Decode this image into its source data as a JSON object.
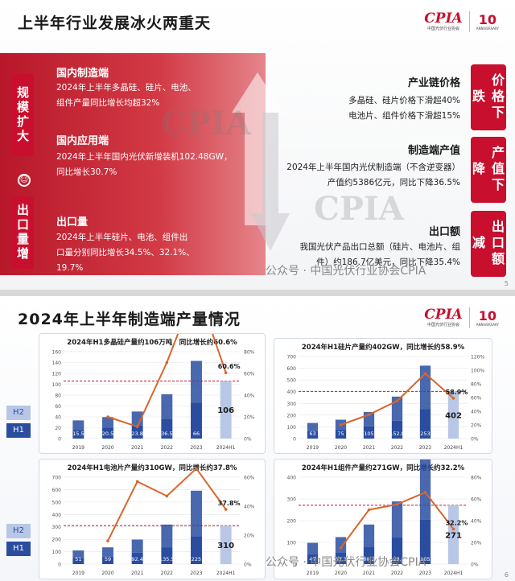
{
  "slide1": {
    "title": "上半年行业发展冰火两重天",
    "logo": {
      "name": "CPIA",
      "sub": "中国光伏行业协会",
      "anniv": "10",
      "anniv_sub": "ANNIVERSARY"
    },
    "left_labels": [
      "规模扩大",
      "出口量增"
    ],
    "left": [
      {
        "heading": "国内制造端",
        "text": [
          "2024年上半年多晶硅、硅片、电池、",
          "组件产量同比增长均超32%"
        ]
      },
      {
        "heading": "国内应用端",
        "text": [
          "2024年上半年国内光伏新增装机102.48GW，",
          "同比增长30.7%"
        ]
      },
      {
        "heading": "出口量",
        "text": [
          "2024年上半年硅片、电池、组件出",
          "口量分别同比增长34.5%、32.1%、",
          "19.7%"
        ]
      }
    ],
    "right_labels": [
      "价格下跌",
      "产值下降",
      "出口额减"
    ],
    "right": [
      {
        "heading": "产业链价格",
        "text": [
          "多晶硅、硅片价格下滑超40%",
          "电池片、组件价格下滑超15%"
        ]
      },
      {
        "heading": "制造端产值",
        "text": [
          "2024年上半年国内光伏制造端（不含逆变器）",
          "产值约5386亿元，同比下降36.5%"
        ]
      },
      {
        "heading": "出口额",
        "text": [
          "我国光伏产品出口总额（硅片、电池片、组",
          "件）约186.7亿美元，同比下降35.4%"
        ]
      }
    ],
    "page_number": "5",
    "watermark": "公众号 · 中国光伏行业协会CPIA"
  },
  "slide2": {
    "title": "2024年上半年制造端产量情况",
    "legend": [
      "H2",
      "H1"
    ],
    "page_number": "6",
    "watermark": "公众号 · 中国光伏行业协会CPIA",
    "colors": {
      "h1": "#2a4da0",
      "h2": "#b9c7e6",
      "accent": "#c8102e",
      "line": "#d9662a"
    }
  },
  "chart_data": [
    {
      "type": "bar",
      "title": "2024年H1多晶硅产量约106万吨，同比增长约60.6%",
      "categories": [
        "2019",
        "2020",
        "2021",
        "2022",
        "2023",
        "2024H1"
      ],
      "series": [
        {
          "name": "H1",
          "values": [
            15.5,
            20.5,
            23.8,
            36.5,
            66,
            106
          ]
        },
        {
          "name": "H2",
          "values": [
            18,
            19,
            26,
            45,
            77,
            0
          ]
        }
      ],
      "growth_pct": [
        null,
        20,
        11,
        70,
        140,
        60.6
      ],
      "growth_label": "60.6%",
      "ylim": [
        0,
        160
      ],
      "yticks": [
        0,
        20,
        40,
        60,
        80,
        100,
        120,
        140,
        160
      ],
      "y2ticks": [
        "0%",
        "20%",
        "40%",
        "60%",
        "80%"
      ]
    },
    {
      "type": "bar",
      "title": "2024年H1硅片产量约402GW，同比增长约58.9%",
      "categories": [
        "2019",
        "2020",
        "2021",
        "2022",
        "2023",
        "2024H1"
      ],
      "series": [
        {
          "name": "H1",
          "values": [
            63,
            75,
            105,
            152.8,
            253,
            402
          ]
        },
        {
          "name": "H2",
          "values": [
            70,
            86,
            122,
            205,
            369,
            0
          ]
        }
      ],
      "growth_pct": [
        null,
        20,
        35,
        55,
        95,
        58.9
      ],
      "growth_label": "58.9%",
      "ylim": [
        0,
        700
      ],
      "yticks": [
        0,
        100,
        200,
        300,
        400,
        500,
        600,
        700
      ],
      "y2ticks": [
        "0%",
        "20%",
        "40%",
        "60%",
        "80%",
        "100%",
        "120%"
      ]
    },
    {
      "type": "bar",
      "title": "2024年H1电池片产量约310GW，同比增长约37.8%",
      "categories": [
        "2019",
        "2020",
        "2021",
        "2022",
        "2023",
        "2024H1"
      ],
      "series": [
        {
          "name": "H1",
          "values": [
            51,
            59,
            92.4,
            135.5,
            225,
            310
          ]
        },
        {
          "name": "H2",
          "values": [
            59,
            76,
            105,
            183,
            366,
            0
          ]
        }
      ],
      "growth_pct": [
        null,
        16,
        57,
        47,
        66,
        37.8
      ],
      "growth_label": "37.8%",
      "ylim": [
        0,
        700
      ],
      "yticks": [
        0,
        100,
        200,
        300,
        400,
        500,
        600,
        700
      ],
      "y2ticks": [
        "0%",
        "20%",
        "40%",
        "60%"
      ]
    },
    {
      "type": "bar",
      "title": "2024年H1组件产量约271GW，同比增长约32.2%",
      "categories": [
        "2019",
        "2020",
        "2021",
        "2022",
        "2023",
        "2024H1"
      ],
      "series": [
        {
          "name": "H1",
          "values": [
            47,
            53.3,
            80.2,
            123.6,
            205,
            271
          ]
        },
        {
          "name": "H2",
          "values": [
            51,
            71,
            102,
            165,
            294,
            0
          ]
        }
      ],
      "growth_pct": [
        null,
        15,
        50,
        55,
        66,
        32.2
      ],
      "growth_label": "32.2%",
      "ylim": [
        0,
        400
      ],
      "yticks": [
        0,
        100,
        200,
        300,
        400
      ],
      "y2ticks": [
        "0%",
        "20%",
        "40%",
        "60%",
        "80%"
      ]
    }
  ]
}
